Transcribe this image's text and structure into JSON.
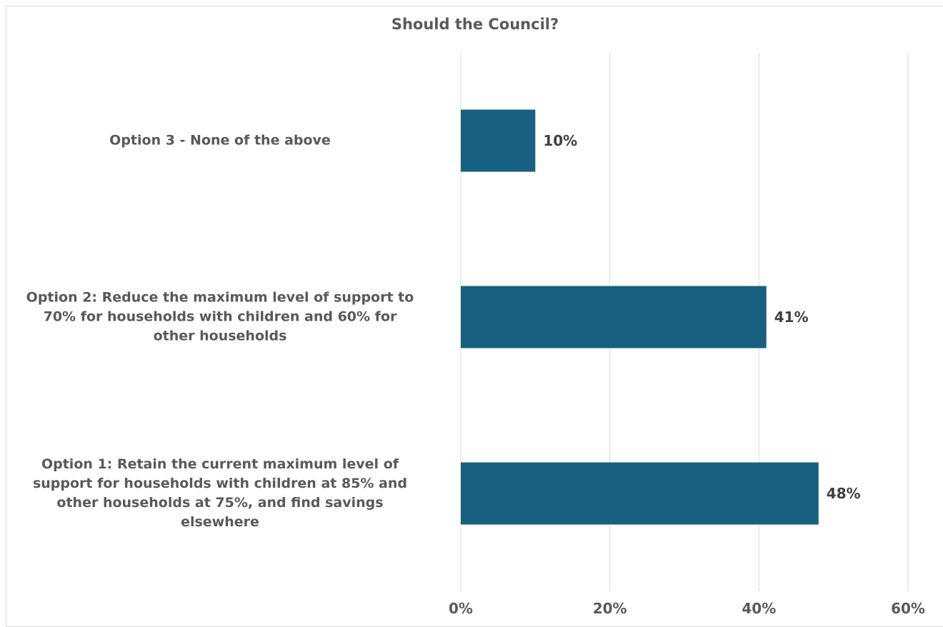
{
  "chart_data": {
    "type": "bar",
    "orientation": "horizontal",
    "title": "Should the Council?",
    "xlabel": "",
    "ylabel": "",
    "xlim": [
      0,
      60
    ],
    "x_ticks": [
      0,
      20,
      40,
      60
    ],
    "x_tick_labels": [
      "0%",
      "20%",
      "40%",
      "60%"
    ],
    "grid": true,
    "legend": "none",
    "bar_color": "#17607f",
    "categories": [
      "Option 3 - None of the above",
      "Option 2: Reduce the maximum level of support to 70% for households with children and 60% for other households",
      "Option 1: Retain the current maximum level of support for households with children at 85% and other households at 75%, and find savings elsewhere"
    ],
    "category_label_lines": [
      [
        "Option 3 - None of the above"
      ],
      [
        "Option 2: Reduce the maximum level of support to",
        "70% for households with children and 60% for",
        "other households"
      ],
      [
        "Option 1: Retain the current maximum level of",
        "support for households with children at 85% and",
        "other households at 75%, and find savings",
        "elsewhere"
      ]
    ],
    "values": [
      10,
      41,
      48
    ],
    "data_labels": [
      "10%",
      "41%",
      "48%"
    ]
  }
}
